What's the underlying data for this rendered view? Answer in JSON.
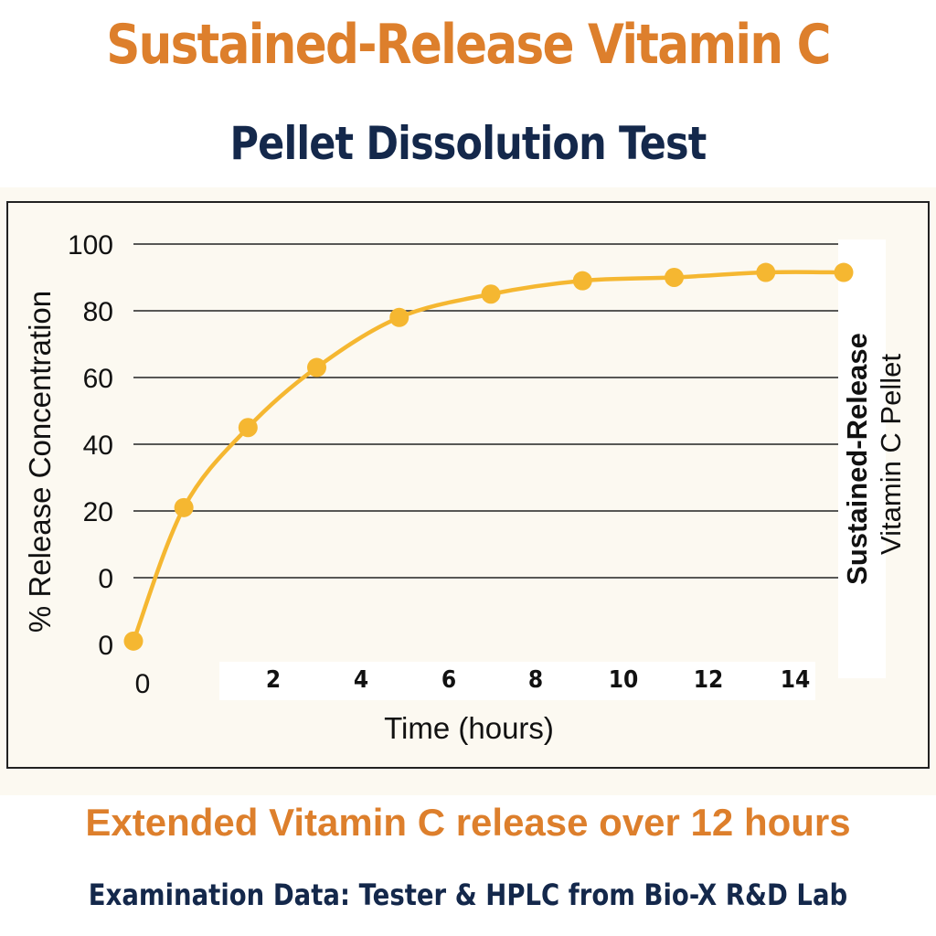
{
  "header": {
    "title": "Sustained-Release Vitamin C",
    "subtitle": "Pellet Dissolution Test"
  },
  "footer": {
    "caption": "Extended Vitamin C release over 12 hours",
    "source": "Examination Data: Tester & HPLC from Bio-X R&D Lab"
  },
  "colors": {
    "title": "#dd7f2c",
    "navy": "#14284b",
    "series": "#f5b731",
    "band": "#fcf9f1"
  },
  "chart_data": {
    "type": "line",
    "xlabel": "Time (hours)",
    "ylabel": "% Release Concentration",
    "xlim": [
      0,
      15.5
    ],
    "ylim": [
      -20,
      100
    ],
    "y_tick_labels": [
      "100",
      "80",
      "60",
      "40",
      "20",
      "0",
      "0"
    ],
    "x_tick_labels": [
      "0",
      "2",
      "4",
      "6",
      "8",
      "10",
      "12",
      "14"
    ],
    "grid": true,
    "legend": {
      "position": "right",
      "line1": "Sustained-Release",
      "line2": "Vitamin C Pellet"
    },
    "series": [
      {
        "name": "Sustained-Release Vitamin C Pellet",
        "x": [
          0,
          1.1,
          2.5,
          4.0,
          5.8,
          7.8,
          9.8,
          11.8,
          13.8,
          15.5
        ],
        "y": [
          -19,
          21,
          45,
          63,
          78,
          85,
          89,
          90,
          91.5,
          91.5
        ]
      }
    ]
  }
}
